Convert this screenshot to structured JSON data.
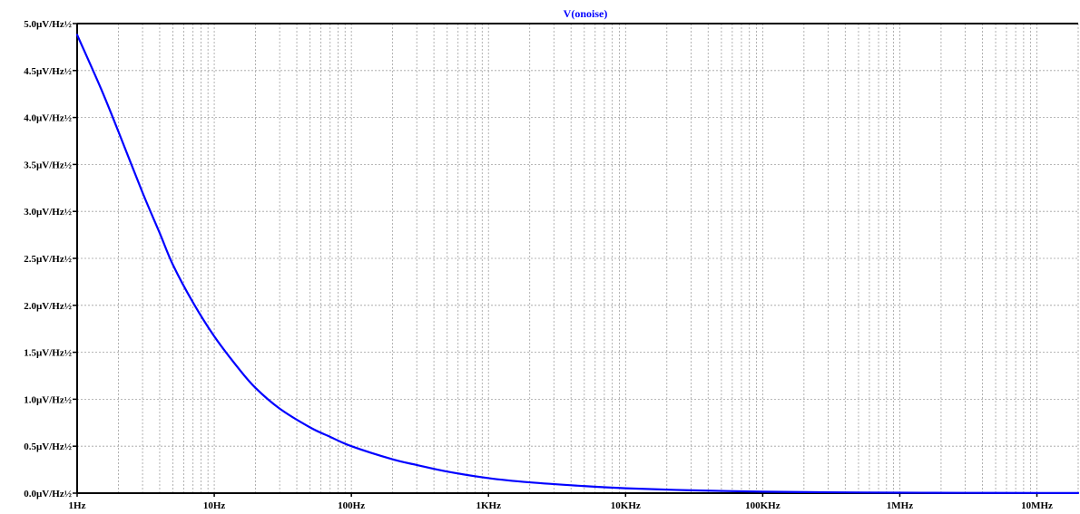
{
  "colors": {
    "background": "#ffffff",
    "trace": "#0000ff",
    "axis": "#000000",
    "grid": "#a0a0a0",
    "label_text": "#000000"
  },
  "chart_data": {
    "type": "line",
    "title": "V(onoise)",
    "xlabel": "",
    "ylabel": "",
    "x_scale": "log",
    "xlim": [
      1,
      20000000
    ],
    "ylim": [
      0,
      5.0
    ],
    "grid": true,
    "x_ticks": [
      {
        "value": 1,
        "label": "1Hz"
      },
      {
        "value": 10,
        "label": "10Hz"
      },
      {
        "value": 100,
        "label": "100Hz"
      },
      {
        "value": 1000,
        "label": "1KHz"
      },
      {
        "value": 10000,
        "label": "10KHz"
      },
      {
        "value": 100000,
        "label": "100KHz"
      },
      {
        "value": 1000000,
        "label": "1MHz"
      },
      {
        "value": 10000000,
        "label": "10MHz"
      }
    ],
    "y_ticks": [
      {
        "value": 0.0,
        "label": "0.0µV/Hz½"
      },
      {
        "value": 0.5,
        "label": "0.5µV/Hz½"
      },
      {
        "value": 1.0,
        "label": "1.0µV/Hz½"
      },
      {
        "value": 1.5,
        "label": "1.5µV/Hz½"
      },
      {
        "value": 2.0,
        "label": "2.0µV/Hz½"
      },
      {
        "value": 2.5,
        "label": "2.5µV/Hz½"
      },
      {
        "value": 3.0,
        "label": "3.0µV/Hz½"
      },
      {
        "value": 3.5,
        "label": "3.5µV/Hz½"
      },
      {
        "value": 4.0,
        "label": "4.0µV/Hz½"
      },
      {
        "value": 4.5,
        "label": "4.5µV/Hz½"
      },
      {
        "value": 5.0,
        "label": "5.0µV/Hz½"
      }
    ],
    "series": [
      {
        "name": "V(onoise)",
        "x": [
          1,
          1.5,
          2,
          3,
          4,
          5,
          7,
          10,
          15,
          20,
          30,
          50,
          70,
          100,
          200,
          300,
          500,
          1000,
          2000,
          5000,
          10000,
          30000,
          100000,
          300000,
          1000000,
          3000000,
          10000000,
          20000000
        ],
        "y": [
          4.88,
          4.3,
          3.85,
          3.2,
          2.77,
          2.43,
          2.03,
          1.67,
          1.33,
          1.12,
          0.9,
          0.7,
          0.6,
          0.5,
          0.36,
          0.3,
          0.23,
          0.16,
          0.115,
          0.075,
          0.052,
          0.03,
          0.016,
          0.009,
          0.005,
          0.003,
          0.002,
          0.001
        ]
      }
    ]
  }
}
